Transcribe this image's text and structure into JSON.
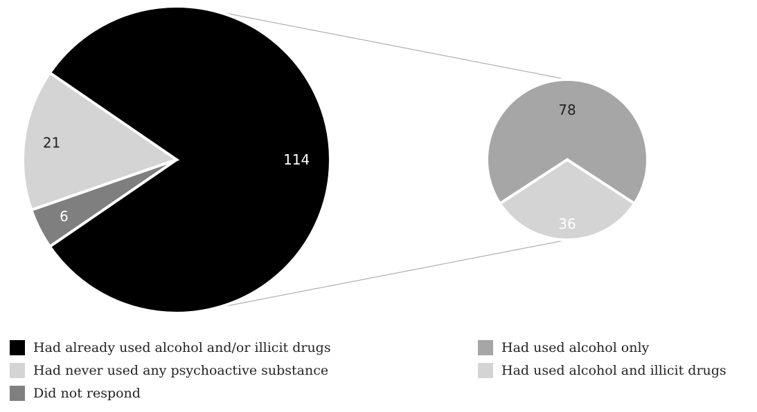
{
  "chart_data": {
    "type": "pie-of-pie",
    "main_pie": {
      "slices": [
        {
          "label": "Had already used alcohol and/or illicit drugs",
          "value": 114,
          "color": "#000000",
          "label_color": "#ffffff"
        },
        {
          "label": "Had never used any psychoactive substance",
          "value": 21,
          "color": "#d4d4d4",
          "label_color": "#222222"
        },
        {
          "label": "Did not respond",
          "value": 6,
          "color": "#7f7f7f",
          "label_color": "#ffffff"
        }
      ]
    },
    "secondary_pie": {
      "breakdown_of": "Had already used alcohol and/or illicit drugs",
      "slices": [
        {
          "label": "Had used alcohol only",
          "value": 78,
          "color": "#a6a6a6",
          "label_color": "#222222"
        },
        {
          "label": "Had used alcohol and illicit drugs",
          "value": 36,
          "color": "#d4d4d4",
          "label_color": "#ffffff"
        }
      ]
    },
    "legend": {
      "left": [
        {
          "label": "Had already used alcohol and/or illicit drugs",
          "color": "#000000"
        },
        {
          "label": "Had never used any psychoactive substance",
          "color": "#d4d4d4"
        },
        {
          "label": "Did not respond",
          "color": "#7f7f7f"
        }
      ],
      "right": [
        {
          "label": "Had used alcohol only",
          "color": "#a6a6a6"
        },
        {
          "label": "Had used alcohol and illicit drugs",
          "color": "#d4d4d4"
        }
      ]
    }
  }
}
